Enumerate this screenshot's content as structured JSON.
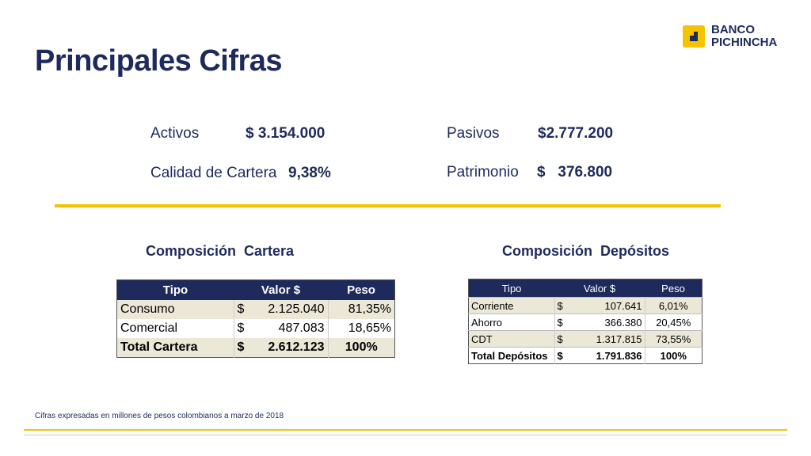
{
  "title": "Principales Cifras",
  "logo": {
    "line1": "BANCO",
    "line2": "PICHINCHA"
  },
  "kpis": {
    "activos_label": "Activos",
    "activos_value": "$ 3.154.000",
    "pasivos_label": "Pasivos",
    "pasivos_value": "$2.777.200",
    "calidad_label": "Calidad de Cartera",
    "calidad_value": "9,38%",
    "patrimonio_label": "Patrimonio",
    "patrimonio_value": "$   376.800"
  },
  "cartera": {
    "title": "Composición  Cartera",
    "headers": [
      "Tipo",
      "Valor $",
      "Peso"
    ],
    "rows": [
      {
        "tipo": "Consumo",
        "cur": "$",
        "valor": "2.125.040",
        "peso": "81,35%"
      },
      {
        "tipo": "Comercial",
        "cur": "$",
        "valor": "487.083",
        "peso": "18,65%"
      }
    ],
    "total": {
      "tipo": "Total Cartera",
      "cur": "$",
      "valor": "2.612.123",
      "peso": "100%"
    }
  },
  "depositos": {
    "title": "Composición  Depósitos",
    "headers": [
      "Tipo",
      "Valor $",
      "Peso"
    ],
    "rows": [
      {
        "tipo": "Corriente",
        "cur": "$",
        "valor": "107.641",
        "peso": "6,01%"
      },
      {
        "tipo": "Ahorro",
        "cur": "$",
        "valor": "366.380",
        "peso": "20,45%"
      },
      {
        "tipo": "CDT",
        "cur": "$",
        "valor": "1.317.815",
        "peso": "73,55%"
      }
    ],
    "total": {
      "tipo": "Total Depósitos",
      "cur": "$",
      "valor": "1.791.836",
      "peso": "100%"
    }
  },
  "footnote": "Cifras expresadas en millones de pesos colombianos a marzo de 2018",
  "colors": {
    "navy": "#1f2a5c",
    "gold": "#f5c300",
    "beige": "#ece8d8"
  }
}
